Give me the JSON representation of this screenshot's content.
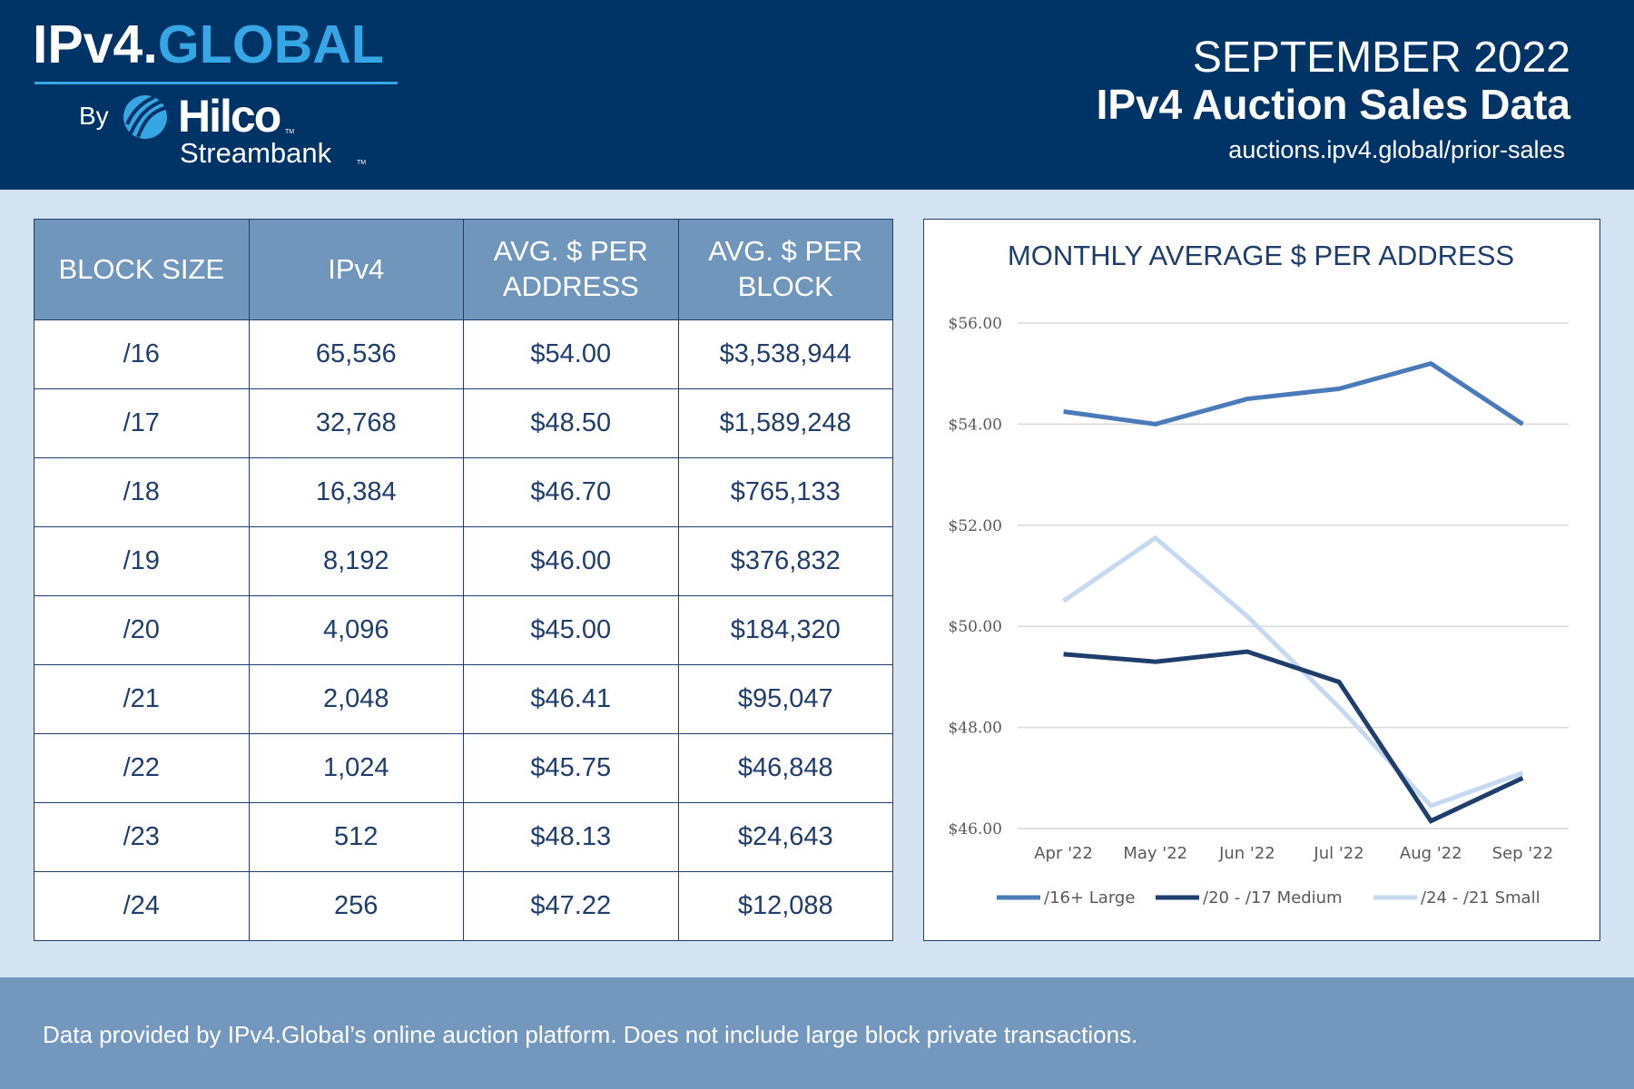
{
  "header": {
    "brand_left": "IPv4.",
    "brand_right": "GLOBAL",
    "by": "By",
    "partner_name": "Hilco",
    "partner_sub": "Streambank",
    "tm": "TM",
    "month": "SEPTEMBER 2022",
    "title": "IPv4 Auction Sales Data",
    "url": "auctions.ipv4.global/prior-sales"
  },
  "table": {
    "headers": [
      {
        "line1": "BLOCK SIZE",
        "line2": ""
      },
      {
        "line1": "IPv4",
        "line2": ""
      },
      {
        "line1": "AVG. $ PER",
        "line2": "ADDRESS"
      },
      {
        "line1": "AVG. $ PER",
        "line2": "BLOCK"
      }
    ],
    "rows": [
      [
        "/16",
        "65,536",
        "$54.00",
        "$3,538,944"
      ],
      [
        "/17",
        "32,768",
        "$48.50",
        "$1,589,248"
      ],
      [
        "/18",
        "16,384",
        "$46.70",
        "$765,133"
      ],
      [
        "/19",
        "8,192",
        "$46.00",
        "$376,832"
      ],
      [
        "/20",
        "4,096",
        "$45.00",
        "$184,320"
      ],
      [
        "/21",
        "2,048",
        "$46.41",
        "$95,047"
      ],
      [
        "/22",
        "1,024",
        "$45.75",
        "$46,848"
      ],
      [
        "/23",
        "512",
        "$48.13",
        "$24,643"
      ],
      [
        "/24",
        "256",
        "$47.22",
        "$12,088"
      ]
    ]
  },
  "chart_data": {
    "type": "line",
    "title": "MONTHLY AVERAGE $ PER ADDRESS",
    "categories": [
      "Apr '22",
      "May '22",
      "Jun '22",
      "Jul '22",
      "Aug '22",
      "Sep '22"
    ],
    "ylim": [
      46,
      56
    ],
    "yticks": [
      "$46.00",
      "$48.00",
      "$50.00",
      "$52.00",
      "$54.00",
      "$56.00"
    ],
    "grid": true,
    "legend": "bottom",
    "series": [
      {
        "name": "/16+ Large",
        "values": [
          54.25,
          54.0,
          54.5,
          54.7,
          55.2,
          54.0
        ],
        "color": "#4a7ab8"
      },
      {
        "name": "/20 - /17 Medium",
        "values": [
          49.45,
          49.3,
          49.5,
          48.9,
          46.15,
          47.0
        ],
        "color": "#1f3e6b"
      },
      {
        "name": "/24 - /21 Small",
        "values": [
          50.5,
          51.75,
          50.2,
          48.4,
          46.45,
          47.1
        ],
        "color": "#c5d9f0"
      }
    ]
  },
  "footer": {
    "note": "Data provided by IPv4.Global’s online auction platform. Does not include large block private transactions."
  }
}
